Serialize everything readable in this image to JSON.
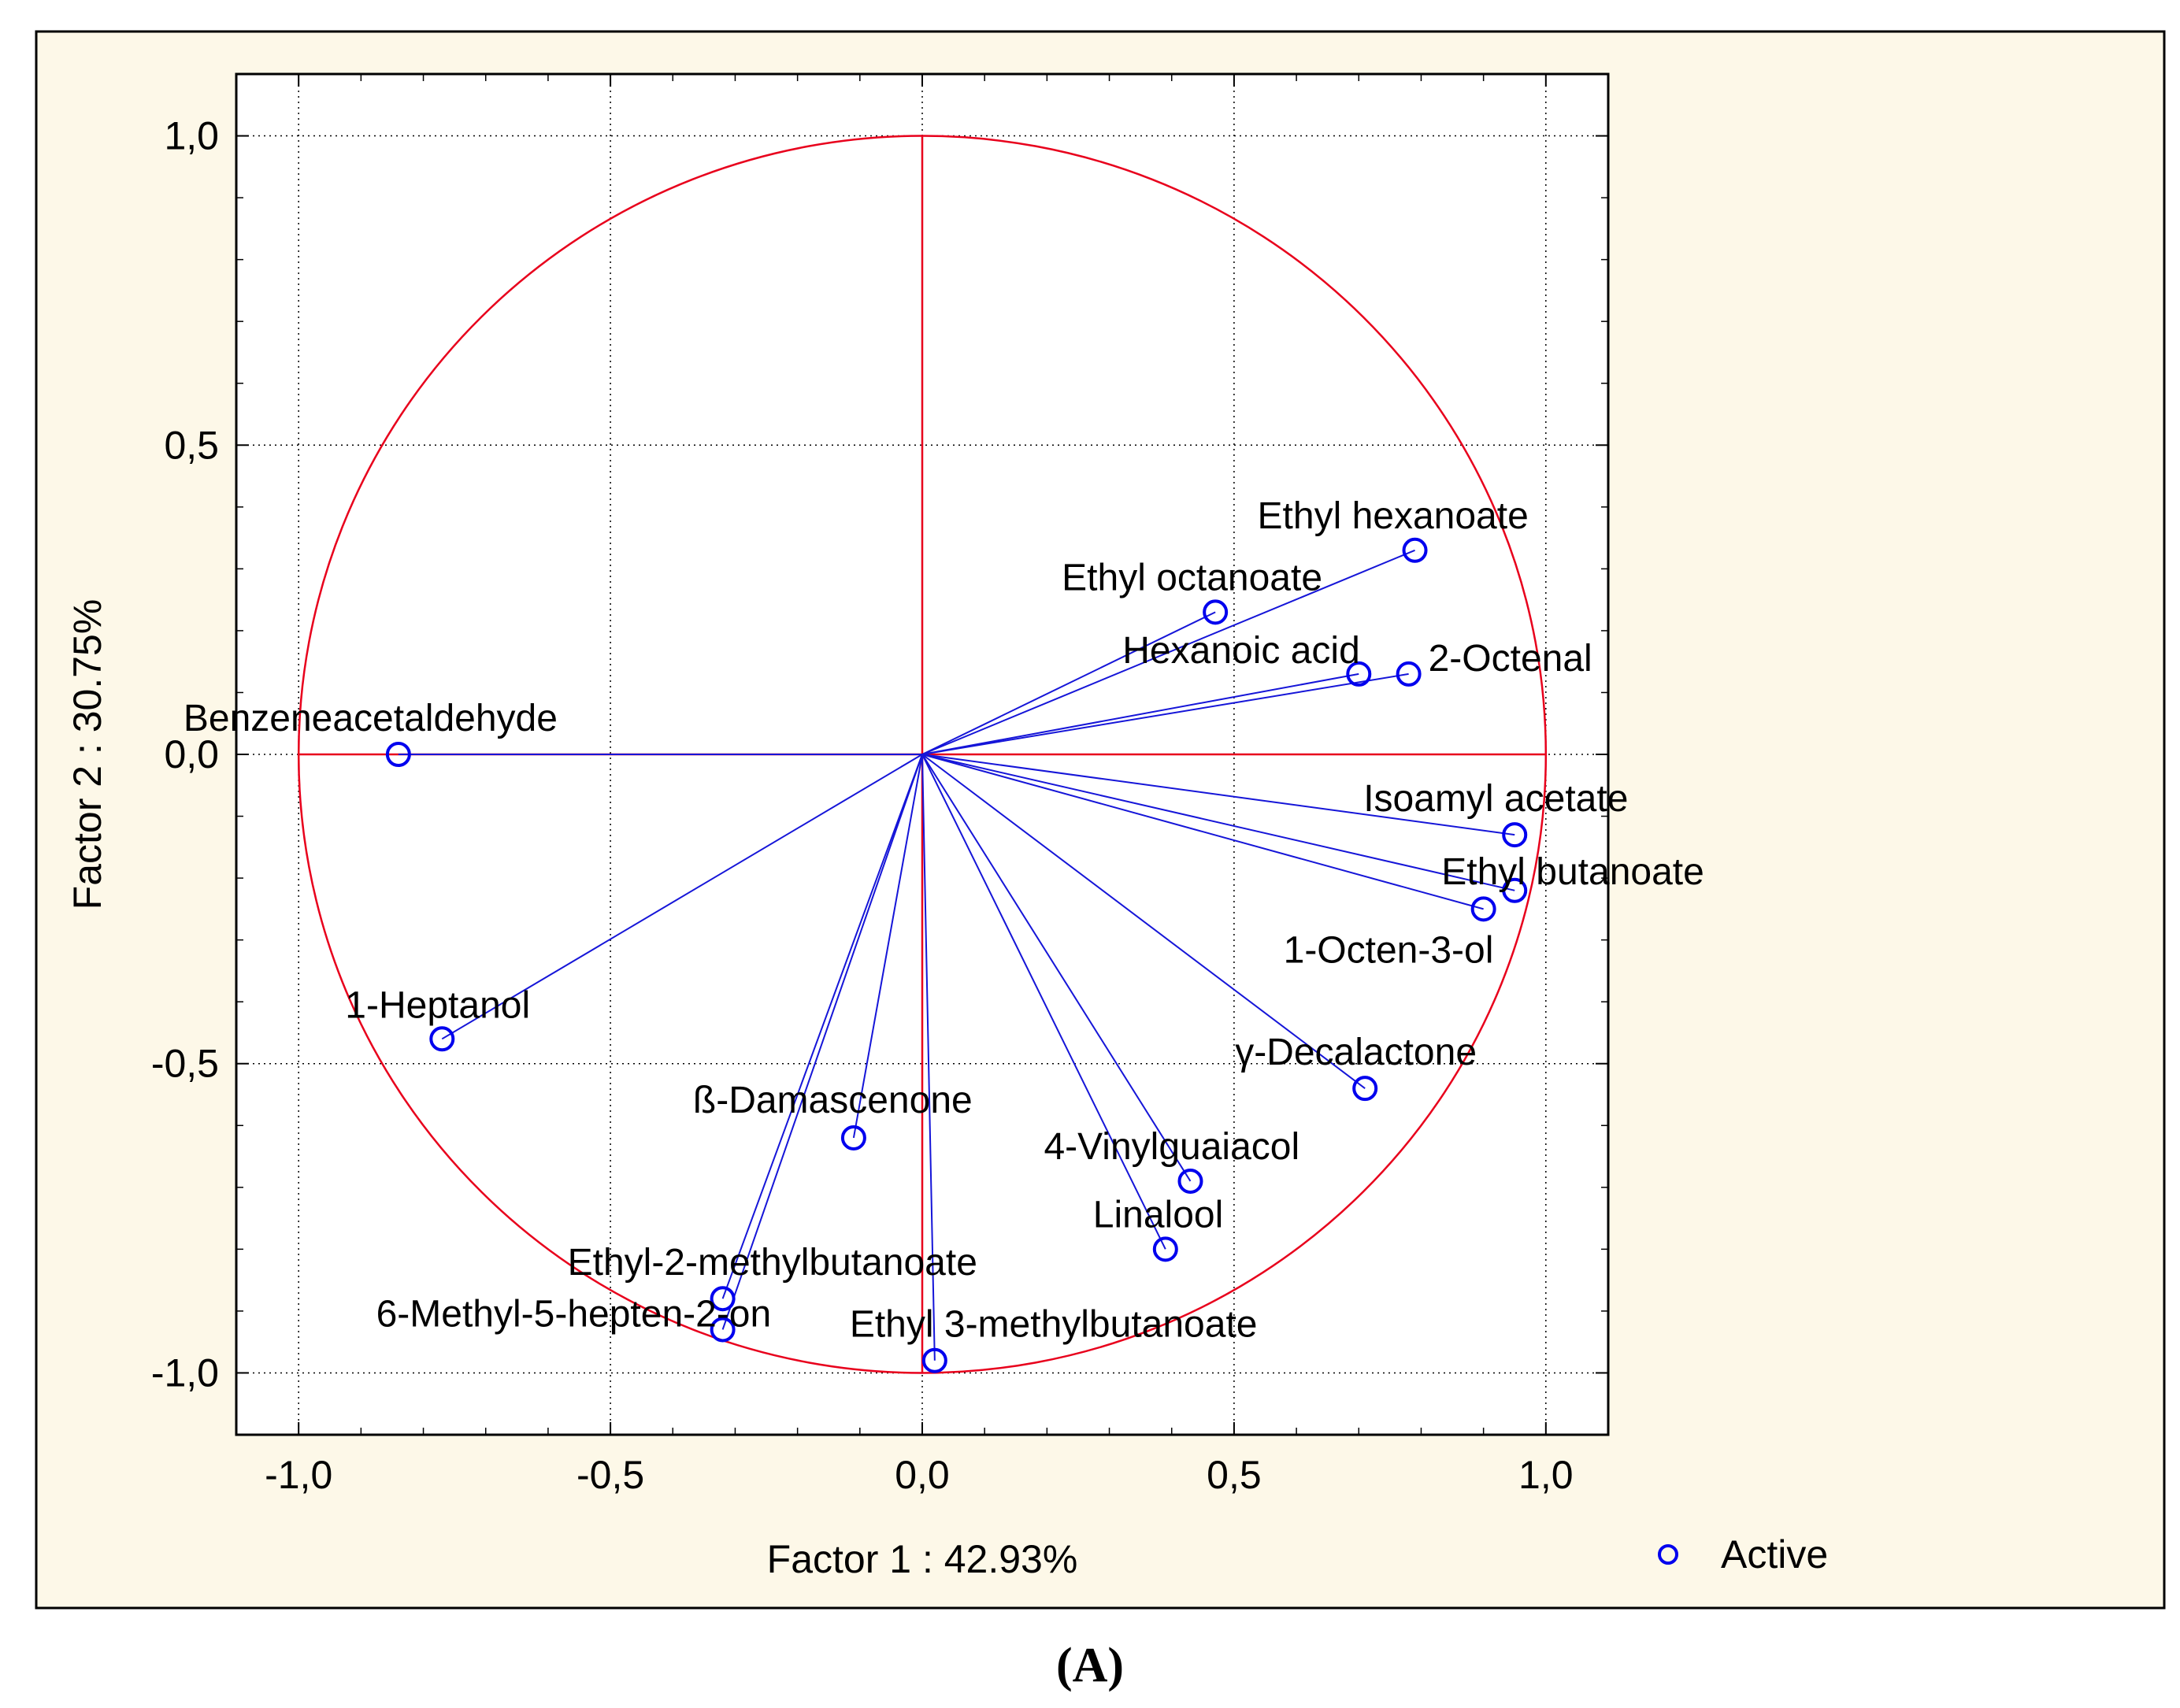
{
  "chart_data": {
    "type": "scatter",
    "subtype": "pca-loading-plot",
    "xlabel": "Factor 1 : 42.93%",
    "ylabel": "Factor 2 : 30.75%",
    "xlim": [
      -1.1,
      1.1
    ],
    "ylim": [
      -1.1,
      1.1
    ],
    "x_ticks": [
      -1.0,
      -0.5,
      0.0,
      0.5,
      1.0
    ],
    "x_tick_labels": [
      "-1,0",
      "-0,5",
      "0,0",
      "0,5",
      "1,0"
    ],
    "y_ticks": [
      1.0,
      0.5,
      0.0,
      -0.5,
      -1.0
    ],
    "y_tick_labels": [
      "1,0",
      "0,5",
      "0,0",
      "-0,5",
      "-1,0"
    ],
    "grid": true,
    "unit_circle": true,
    "legend": {
      "placement": "bottom-right",
      "entries": [
        "Active"
      ]
    },
    "colors": {
      "points": "#0000ee",
      "vectors": "#1515d8",
      "circle": "#e8001c",
      "background": "#fdf8e8",
      "grid": "#000000"
    },
    "points": [
      {
        "name": "Ethyl hexanoate",
        "x": 0.79,
        "y": 0.33
      },
      {
        "name": "Ethyl octanoate",
        "x": 0.47,
        "y": 0.23
      },
      {
        "name": "Hexanoic acid",
        "x": 0.7,
        "y": 0.13
      },
      {
        "name": "2-Octenal",
        "x": 0.78,
        "y": 0.13
      },
      {
        "name": "Benzeneacetaldehyde",
        "x": -0.84,
        "y": 0.0
      },
      {
        "name": "Isoamyl acetate",
        "x": 0.95,
        "y": -0.13
      },
      {
        "name": "Ethyl butanoate",
        "x": 0.95,
        "y": -0.22
      },
      {
        "name": "1-Octen-3-ol",
        "x": 0.9,
        "y": -0.25
      },
      {
        "name": "1-Heptanol",
        "x": -0.77,
        "y": -0.46
      },
      {
        "name": "γ-Decalactone",
        "x": 0.71,
        "y": -0.54
      },
      {
        "name": "ß-Damascenone",
        "x": -0.11,
        "y": -0.62
      },
      {
        "name": "4-Vinylguaiacol",
        "x": 0.43,
        "y": -0.69
      },
      {
        "name": "Linalool",
        "x": 0.39,
        "y": -0.8
      },
      {
        "name": "Ethyl-2-methylbutanoate",
        "x": -0.32,
        "y": -0.88
      },
      {
        "name": "6-Methyl-5-hepten-2-on",
        "x": -0.32,
        "y": -0.93
      },
      {
        "name": "Ethyl 3-methylbutanoate",
        "x": 0.02,
        "y": -0.98
      }
    ]
  },
  "panel_label": "(A)"
}
